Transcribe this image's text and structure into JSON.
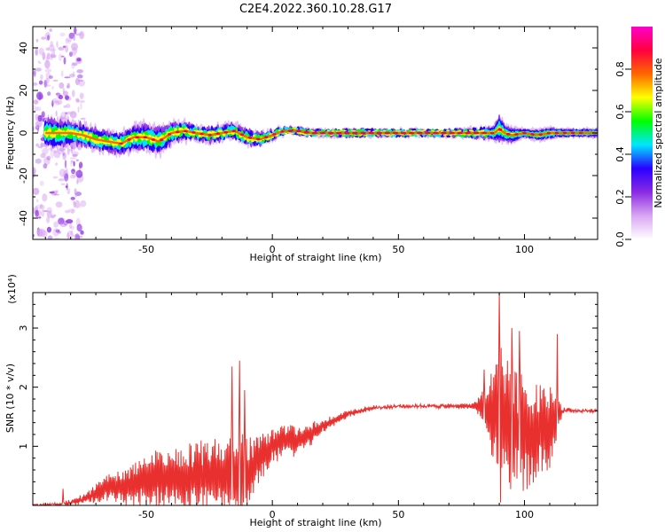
{
  "title": "C2E4.2022.360.10.28.G17",
  "chart_data": [
    {
      "type": "heatmap",
      "name": "spectrogram",
      "xlabel": "Height of straight line (km)",
      "ylabel": "Frequency (Hz)",
      "xlim": [
        -95,
        129
      ],
      "ylim": [
        -50,
        50
      ],
      "x_ticks": [
        -50,
        0,
        50,
        100
      ],
      "y_ticks": [
        -40,
        -20,
        0,
        20,
        40
      ],
      "colorbar": {
        "label": "Normalized spectral amplitude",
        "range": [
          0,
          1
        ],
        "ticks": [
          0.0,
          0.2,
          0.4,
          0.6,
          0.8
        ],
        "tick_labels": [
          "0.0",
          "0.2",
          "0.4",
          "0.6",
          "0.8"
        ],
        "colors": [
          "#ffffff",
          "#d9a6f2",
          "#8a2be2",
          "#2a00ff",
          "#00e5ff",
          "#00ff00",
          "#ffff00",
          "#ff6600",
          "#ff0040",
          "#ff00cc"
        ]
      },
      "ridge": {
        "x": [
          -90,
          -85,
          -80,
          -75,
          -70,
          -65,
          -60,
          -55,
          -50,
          -45,
          -40,
          -35,
          -30,
          -25,
          -20,
          -15,
          -10,
          -5,
          0,
          2,
          5,
          10,
          15,
          20,
          30,
          40,
          50,
          60,
          70,
          80,
          85,
          88,
          90,
          92,
          95,
          100,
          105,
          110,
          115,
          120,
          129
        ],
        "y": [
          0,
          0,
          0,
          -1,
          -3,
          -4,
          -5,
          -2,
          -2,
          -4,
          0,
          1,
          0,
          -1,
          0,
          1,
          -2,
          -3,
          -1,
          0,
          1,
          1,
          0,
          0,
          0,
          0,
          0,
          0,
          0,
          0,
          0,
          0,
          2,
          0,
          -1,
          0,
          -1,
          0,
          0,
          0,
          0
        ],
        "width": [
          10,
          9,
          8,
          7,
          7,
          7,
          7,
          8,
          9,
          9,
          7,
          6,
          5,
          5,
          5,
          5,
          5,
          4,
          3,
          3,
          2,
          2,
          2,
          2,
          2,
          2,
          2,
          2,
          2,
          3,
          4,
          5,
          9,
          6,
          5,
          3,
          4,
          4,
          3,
          3,
          3
        ]
      }
    },
    {
      "type": "line",
      "name": "snr",
      "xlabel": "Height of straight line (km)",
      "ylabel": "SNR (10 * v/v)",
      "y_multiplier": "(x10⁴)",
      "xlim": [
        -95,
        129
      ],
      "ylim": [
        0,
        3.6
      ],
      "x_ticks": [
        -50,
        0,
        50,
        100
      ],
      "y_ticks": [
        1,
        2,
        3
      ],
      "color": "#e8312f",
      "envelope": {
        "x": [
          -95,
          -85,
          -80,
          -75,
          -70,
          -65,
          -60,
          -55,
          -50,
          -45,
          -40,
          -35,
          -30,
          -25,
          -20,
          -15,
          -12,
          -10,
          -5,
          0,
          5,
          10,
          15,
          20,
          25,
          30,
          40,
          50,
          60,
          70,
          80,
          85,
          90,
          95,
          100,
          105,
          110,
          115,
          120,
          129
        ],
        "base": [
          0.0,
          0.02,
          0.05,
          0.1,
          0.2,
          0.3,
          0.3,
          0.35,
          0.45,
          0.45,
          0.5,
          0.45,
          0.5,
          0.5,
          0.5,
          0.5,
          0.5,
          0.55,
          0.8,
          1.0,
          1.1,
          1.1,
          1.2,
          1.35,
          1.45,
          1.55,
          1.65,
          1.68,
          1.68,
          1.68,
          1.68,
          1.65,
          1.4,
          1.3,
          1.2,
          1.3,
          1.3,
          1.6,
          1.6,
          1.6
        ],
        "amp": [
          0.0,
          0.02,
          0.05,
          0.1,
          0.15,
          0.25,
          0.3,
          0.4,
          0.45,
          0.5,
          0.5,
          0.55,
          0.6,
          0.6,
          0.75,
          0.9,
          0.95,
          0.6,
          0.4,
          0.3,
          0.3,
          0.25,
          0.2,
          0.12,
          0.08,
          0.05,
          0.03,
          0.02,
          0.02,
          0.03,
          0.05,
          0.4,
          1.4,
          1.0,
          1.0,
          0.9,
          0.8,
          0.05,
          0.02,
          0.02
        ]
      },
      "spikes": [
        {
          "x": -83,
          "y": 0.28
        },
        {
          "x": -13,
          "y": 2.45
        },
        {
          "x": -16,
          "y": 2.35
        },
        {
          "x": -11,
          "y": 1.95
        },
        {
          "x": 90,
          "y": 3.6
        },
        {
          "x": 84,
          "y": 2.3
        },
        {
          "x": 95,
          "y": 3.0
        },
        {
          "x": 98,
          "y": 2.95
        },
        {
          "x": 113,
          "y": 2.9
        }
      ]
    }
  ]
}
